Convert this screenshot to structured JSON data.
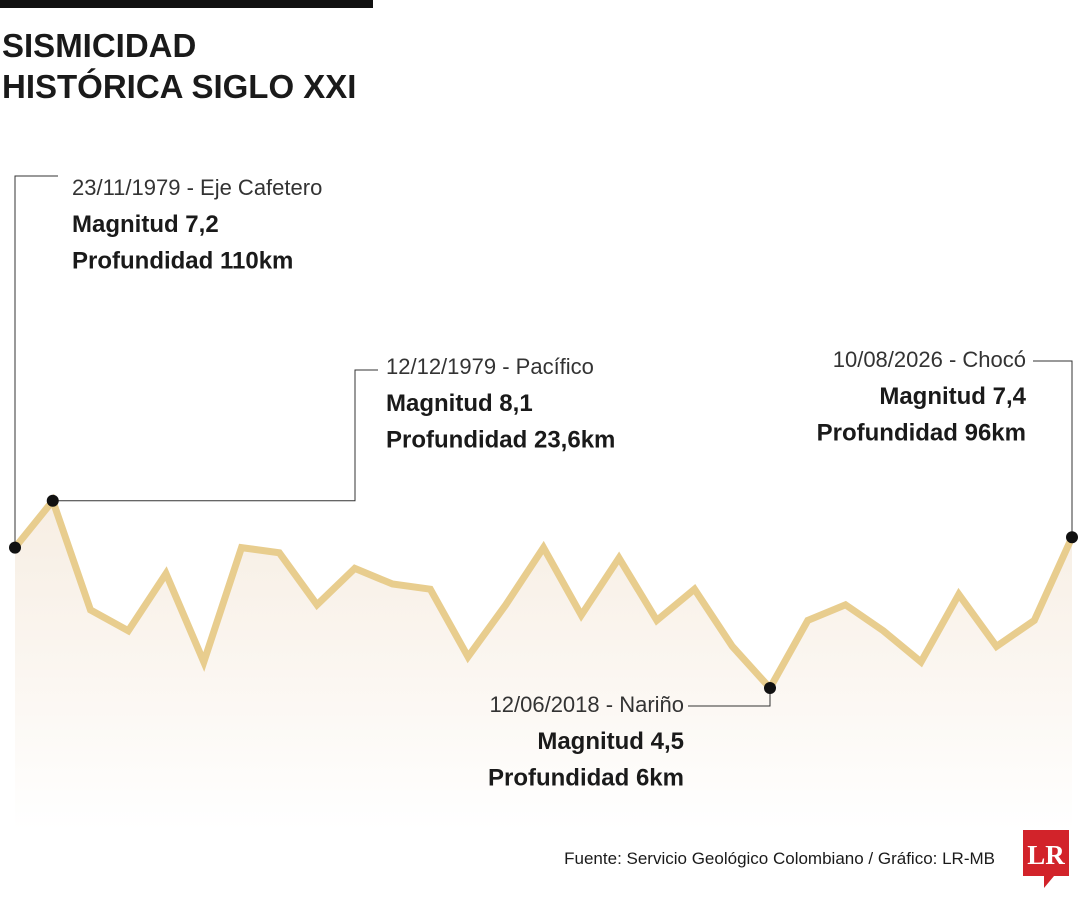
{
  "chart_data": {
    "type": "line",
    "title": [
      "SISMICIDAD",
      "HISTÓRICA SIGLO XXI"
    ],
    "categories": [
      null,
      null,
      null,
      null,
      null,
      null,
      null,
      null,
      null,
      null,
      null,
      null,
      null,
      null,
      null,
      null,
      null,
      null,
      null,
      null,
      null,
      null,
      null,
      null,
      null,
      null,
      null,
      null,
      null
    ],
    "series": [
      {
        "color": "#e8cd8e",
        "values": [
          7.2,
          8.1,
          6.0,
          5.6,
          6.7,
          5.0,
          7.2,
          7.1,
          6.1,
          6.8,
          6.5,
          6.4,
          5.1,
          6.1,
          7.2,
          5.9,
          7.0,
          5.8,
          6.4,
          5.3,
          4.5,
          5.8,
          6.1,
          5.6,
          5.0,
          6.3,
          5.3,
          5.8,
          7.4
        ]
      }
    ],
    "ylim": [
      2,
      8.5
    ],
    "annotations": [
      {
        "lines": [
          "23/11/1979 - Eje Cafetero",
          "Magnitud 7,2",
          "Profundidad 110km"
        ]
      },
      {
        "lines": [
          "12/12/1979 - Pacífico",
          "Magnitud 8,1",
          "Profundidad 23,6km"
        ]
      },
      {
        "lines": [
          "10/08/2026 - Chocó",
          "Magnitud 7,4",
          "Profundidad 96km"
        ]
      },
      {
        "lines": [
          "12/06/2018 - Nariño",
          "Magnitud 4,5",
          "Profundidad 6km"
        ]
      }
    ],
    "source": "Fuente: Servicio Geológico Colombiano / Gráfico: LR-MB",
    "logo": "LR"
  }
}
